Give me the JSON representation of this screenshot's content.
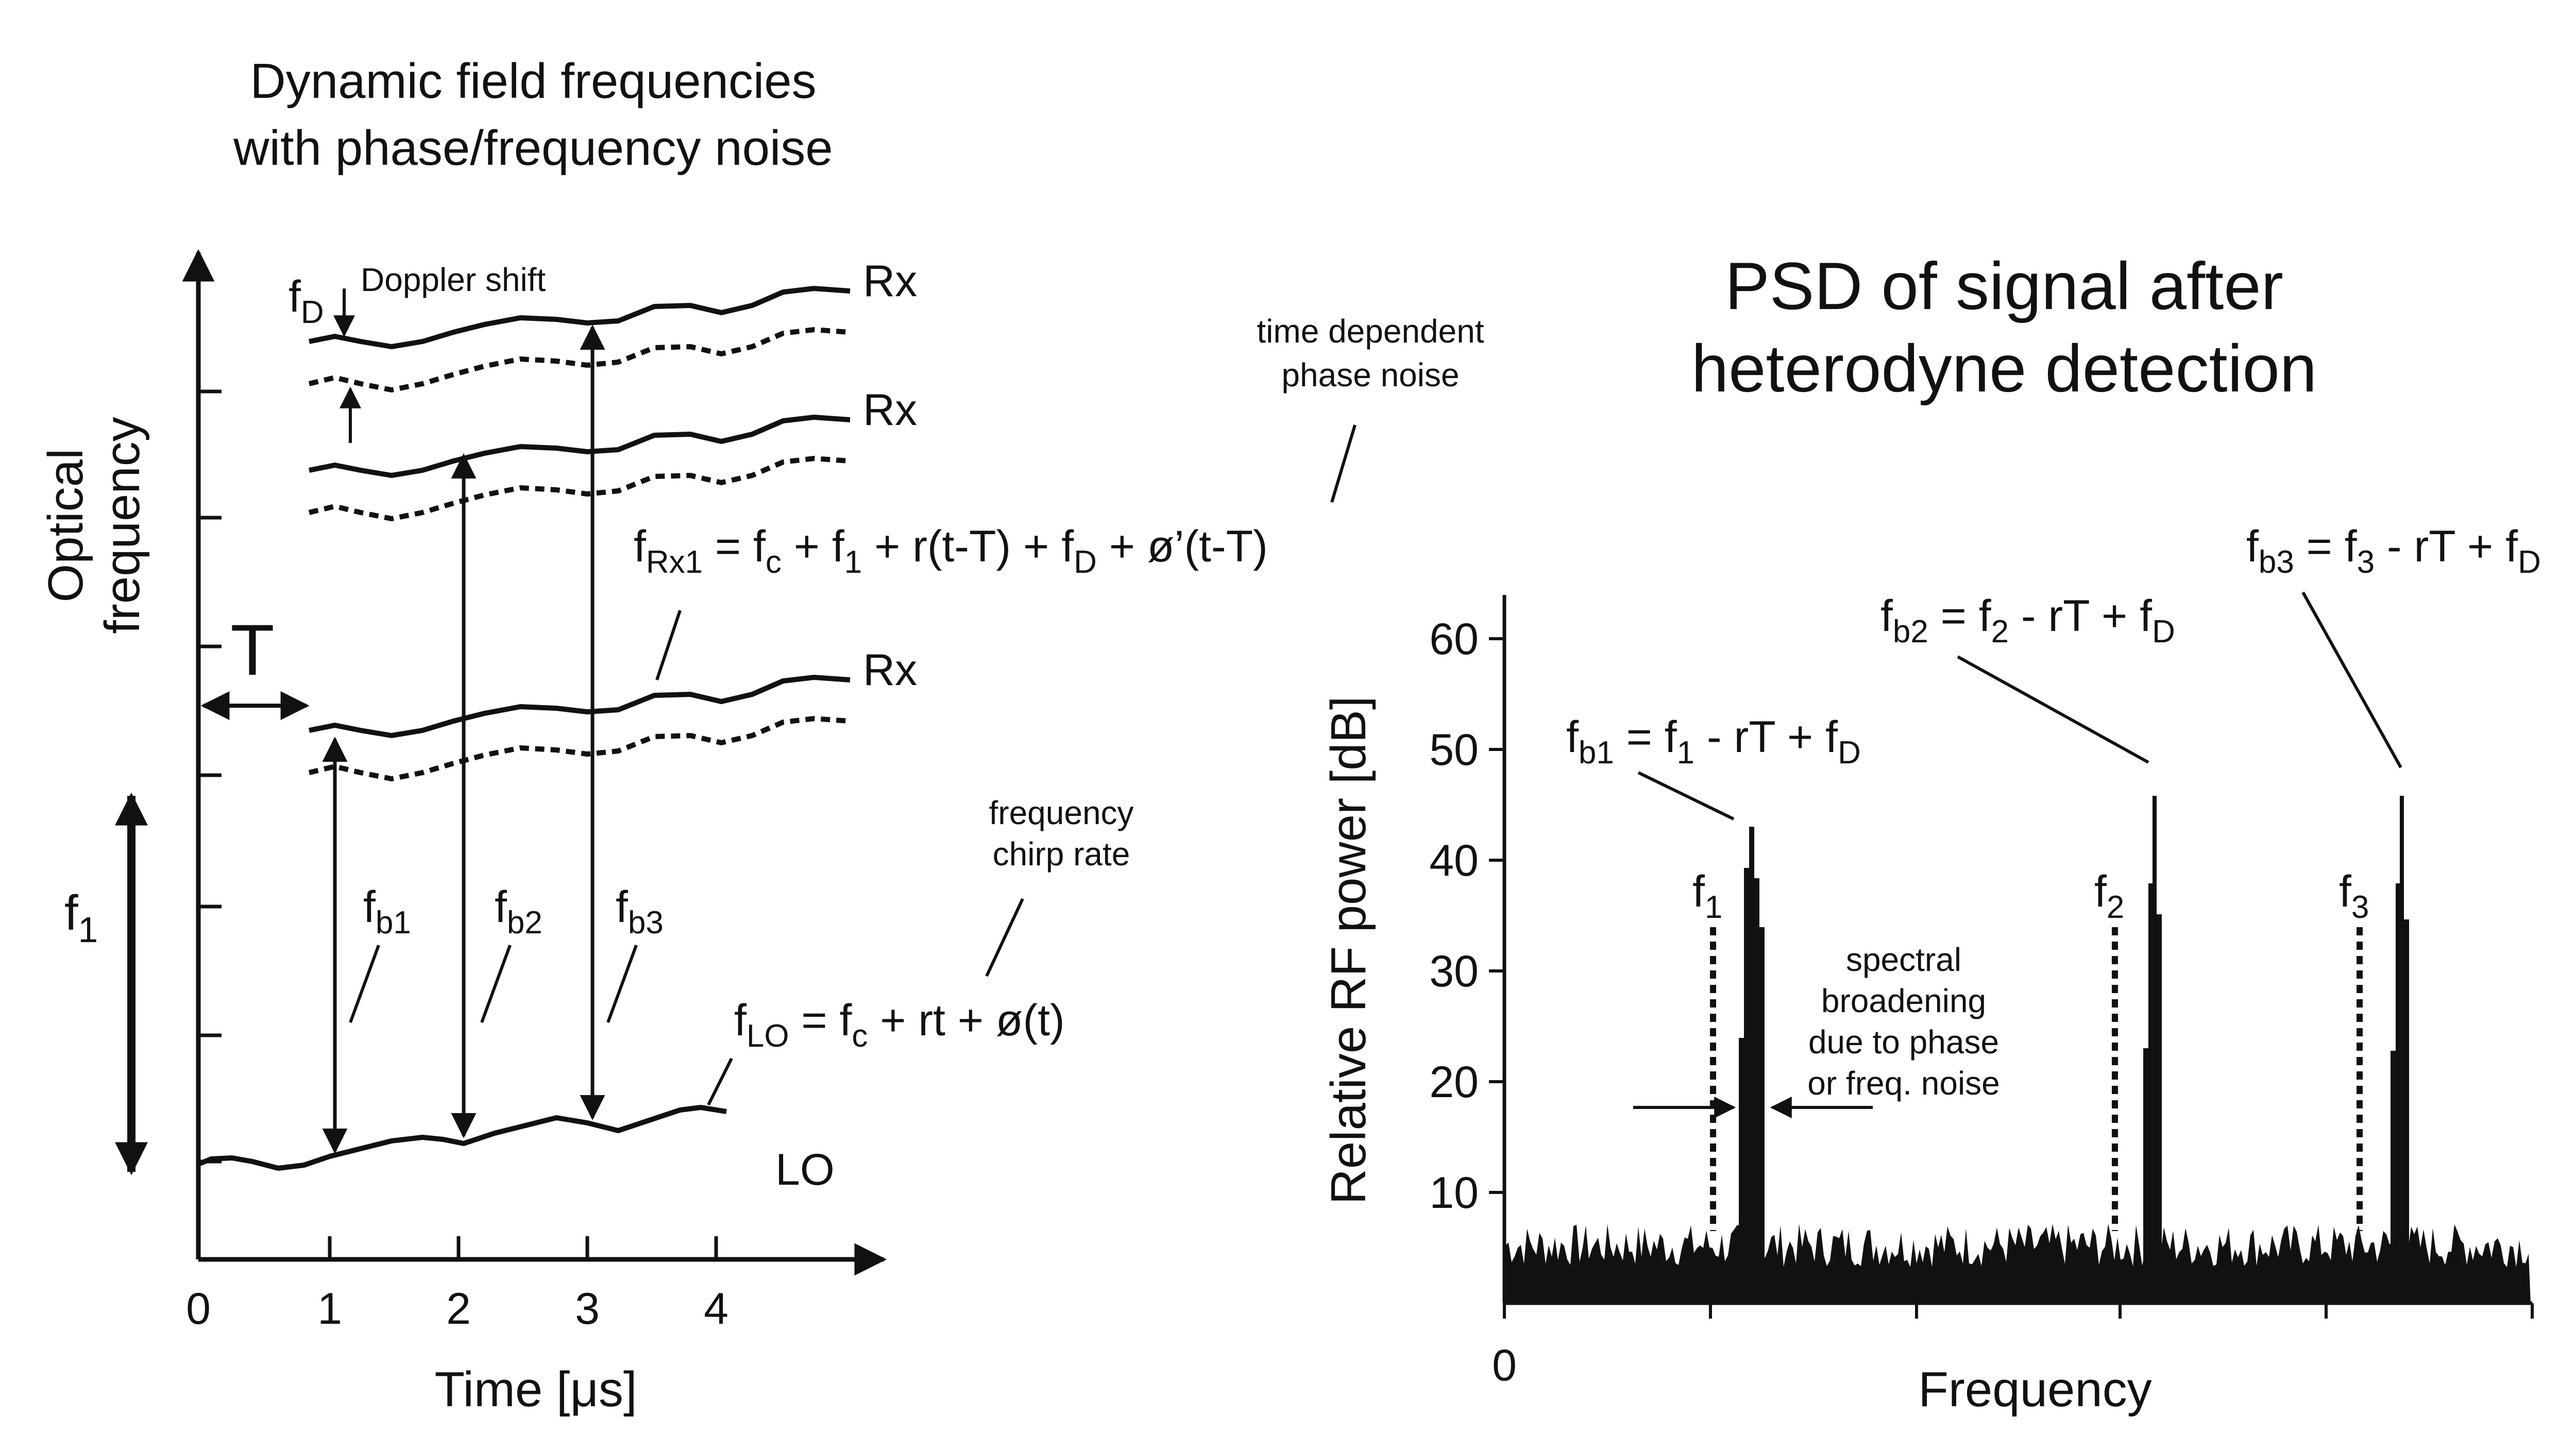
{
  "left": {
    "title_line1": "Dynamic field frequencies",
    "title_line2": "with phase/frequency noise",
    "y_axis_line1": "Optical",
    "y_axis_line2": "frequency",
    "x_axis_label": "Time [μs]",
    "x_ticks": [
      "0",
      "1",
      "2",
      "3",
      "4"
    ],
    "T_label": "T",
    "f1_label": "f",
    "f1_sub": "1",
    "rx_label": "Rx",
    "lo_label": "LO",
    "fD_label": "f",
    "fD_sub": "D",
    "doppler_label": "Doppler shift",
    "phase_noise_line1": "time dependent",
    "phase_noise_line2": "phase noise",
    "chirp_line1": "frequency",
    "chirp_line2": "chirp rate",
    "fb1": {
      "main": "f",
      "sub": "b1"
    },
    "fb2": {
      "main": "f",
      "sub": "b2"
    },
    "fb3": {
      "main": "f",
      "sub": "b3"
    },
    "eq_rx": {
      "p1": "f",
      "p1_sub": "Rx1",
      "p2": " = f",
      "p2_sub": "c",
      "p3": " + f",
      "p3_sub": "1",
      "p4": " + r(t-T) + f",
      "p4_sub": "D",
      "p5": " + ø’(t-T)"
    },
    "eq_lo": {
      "p1": "f",
      "p1_sub": "LO",
      "p2": " = f",
      "p2_sub": "c",
      "p3": " + rt + ø(t)"
    }
  },
  "right": {
    "title_line1": "PSD of signal after",
    "title_line2": "heterodyne detection",
    "y_axis_label": "Relative RF power [dB]",
    "x_axis_label": "Frequency",
    "x_zero": "0",
    "y_ticks": [
      "10",
      "20",
      "30",
      "40",
      "50",
      "60"
    ],
    "f1": {
      "main": "f",
      "sub": "1"
    },
    "f2": {
      "main": "f",
      "sub": "2"
    },
    "f3": {
      "main": "f",
      "sub": "3"
    },
    "broadening_line1": "spectral",
    "broadening_line2": "broadening",
    "broadening_line3": "due to phase",
    "broadening_line4": "or freq. noise",
    "eq_b1": {
      "p1": "f",
      "p1_sub": "b1",
      "p2": " = f",
      "p2_sub": "1",
      "p3": " - rT + f",
      "p3_sub": "D"
    },
    "eq_b2": {
      "p1": "f",
      "p1_sub": "b2",
      "p2": " = f",
      "p2_sub": "2",
      "p3": " - rT + f",
      "p3_sub": "D"
    },
    "eq_b3": {
      "p1": "f",
      "p1_sub": "b3",
      "p2": " = f",
      "p2_sub": "3",
      "p3": " - rT + f",
      "p3_sub": "D"
    }
  },
  "colors": {
    "ink": "#111111",
    "background": "#ffffff"
  }
}
